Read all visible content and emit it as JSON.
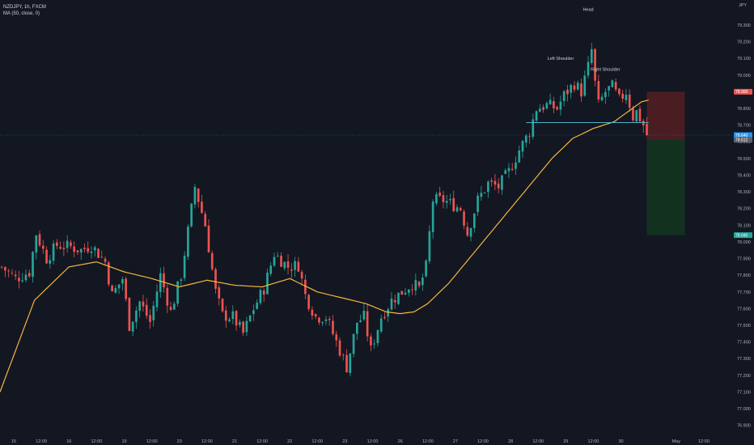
{
  "header": {
    "symbol_line": "NZDJPY, 1h, FXCM",
    "indicator_line": "MA (50, close, 0)"
  },
  "axis_unit": "JPY",
  "chart_data": {
    "type": "candlestick",
    "symbol": "NZDJPY",
    "interval": "1h",
    "source": "FXCM",
    "ylim": [
      76.85,
      79.45
    ],
    "y_ticks": [
      "79.300",
      "79.200",
      "79.100",
      "79.000",
      "78.900",
      "78.800",
      "78.700",
      "78.600",
      "78.500",
      "78.400",
      "78.300",
      "78.200",
      "78.100",
      "78.000",
      "77.900",
      "77.800",
      "77.700",
      "77.600",
      "77.500",
      "77.400",
      "77.300",
      "77.200",
      "77.100",
      "77.000",
      "76.900"
    ],
    "x_ticks": [
      {
        "label": "15",
        "pos": 4
      },
      {
        "label": "12:00",
        "pos": 12
      },
      {
        "label": "16",
        "pos": 20
      },
      {
        "label": "12:00",
        "pos": 28
      },
      {
        "label": "19",
        "pos": 36
      },
      {
        "label": "12:00",
        "pos": 44
      },
      {
        "label": "20",
        "pos": 52
      },
      {
        "label": "12:00",
        "pos": 60
      },
      {
        "label": "21",
        "pos": 68
      },
      {
        "label": "12:00",
        "pos": 76
      },
      {
        "label": "22",
        "pos": 84
      },
      {
        "label": "12:00",
        "pos": 92
      },
      {
        "label": "23",
        "pos": 100
      },
      {
        "label": "12:00",
        "pos": 108
      },
      {
        "label": "26",
        "pos": 116
      },
      {
        "label": "12:00",
        "pos": 124
      },
      {
        "label": "27",
        "pos": 132
      },
      {
        "label": "12:00",
        "pos": 140
      },
      {
        "label": "28",
        "pos": 148
      },
      {
        "label": "12:00",
        "pos": 156
      },
      {
        "label": "29",
        "pos": 164
      },
      {
        "label": "12:00",
        "pos": 172
      },
      {
        "label": "30",
        "pos": 180
      },
      {
        "label": "May",
        "pos": 196
      },
      {
        "label": "12:00",
        "pos": 204
      }
    ],
    "x_range": [
      0,
      212
    ],
    "candle_count": 188,
    "close_keys": [
      [
        0,
        77.85
      ],
      [
        4,
        77.78
      ],
      [
        8,
        77.82
      ],
      [
        10,
        78.05
      ],
      [
        13,
        77.9
      ],
      [
        16,
        77.98
      ],
      [
        20,
        77.97
      ],
      [
        23,
        77.95
      ],
      [
        26,
        77.98
      ],
      [
        30,
        77.88
      ],
      [
        32,
        77.68
      ],
      [
        35,
        77.78
      ],
      [
        37,
        77.5
      ],
      [
        40,
        77.64
      ],
      [
        43,
        77.52
      ],
      [
        46,
        77.8
      ],
      [
        49,
        77.58
      ],
      [
        52,
        77.8
      ],
      [
        56,
        78.33
      ],
      [
        59,
        78.1
      ],
      [
        62,
        77.7
      ],
      [
        64,
        77.56
      ],
      [
        67,
        77.55
      ],
      [
        70,
        77.45
      ],
      [
        73,
        77.6
      ],
      [
        76,
        77.72
      ],
      [
        79,
        77.93
      ],
      [
        83,
        77.85
      ],
      [
        86,
        77.86
      ],
      [
        88,
        77.68
      ],
      [
        91,
        77.55
      ],
      [
        94,
        77.55
      ],
      [
        97,
        77.4
      ],
      [
        100,
        77.25
      ],
      [
        103,
        77.52
      ],
      [
        105,
        77.55
      ],
      [
        107,
        77.35
      ],
      [
        110,
        77.55
      ],
      [
        113,
        77.65
      ],
      [
        116,
        77.7
      ],
      [
        119,
        77.75
      ],
      [
        121,
        77.72
      ],
      [
        123,
        77.85
      ],
      [
        125,
        78.25
      ],
      [
        128,
        78.25
      ],
      [
        131,
        78.22
      ],
      [
        133,
        78.2
      ],
      [
        135,
        78.05
      ],
      [
        138,
        78.25
      ],
      [
        141,
        78.35
      ],
      [
        144,
        78.33
      ],
      [
        147,
        78.42
      ],
      [
        150,
        78.55
      ],
      [
        153,
        78.66
      ],
      [
        155,
        78.8
      ],
      [
        158,
        78.82
      ],
      [
        161,
        78.8
      ],
      [
        163,
        78.88
      ],
      [
        166,
        78.95
      ],
      [
        168,
        78.9
      ],
      [
        170,
        79.05
      ],
      [
        171,
        79.15
      ],
      [
        172,
        78.95
      ],
      [
        173,
        78.82
      ],
      [
        175,
        78.9
      ],
      [
        177,
        78.93
      ],
      [
        179,
        78.85
      ],
      [
        181,
        78.9
      ],
      [
        183,
        78.75
      ],
      [
        184,
        78.78
      ],
      [
        186,
        78.7
      ],
      [
        187,
        78.64
      ]
    ],
    "ma_keys": [
      [
        0,
        77.1
      ],
      [
        10,
        77.65
      ],
      [
        20,
        77.85
      ],
      [
        28,
        77.88
      ],
      [
        36,
        77.82
      ],
      [
        44,
        77.78
      ],
      [
        52,
        77.73
      ],
      [
        60,
        77.77
      ],
      [
        68,
        77.74
      ],
      [
        76,
        77.73
      ],
      [
        84,
        77.78
      ],
      [
        92,
        77.7
      ],
      [
        100,
        77.66
      ],
      [
        106,
        77.63
      ],
      [
        112,
        77.58
      ],
      [
        116,
        77.57
      ],
      [
        120,
        77.58
      ],
      [
        124,
        77.63
      ],
      [
        130,
        77.75
      ],
      [
        136,
        77.9
      ],
      [
        142,
        78.05
      ],
      [
        148,
        78.2
      ],
      [
        154,
        78.35
      ],
      [
        160,
        78.5
      ],
      [
        166,
        78.62
      ],
      [
        172,
        78.68
      ],
      [
        178,
        78.72
      ],
      [
        182,
        78.78
      ],
      [
        186,
        78.84
      ],
      [
        188,
        78.85
      ]
    ],
    "ma_label": "MA (50, close, 0)",
    "neckline": {
      "x1": 152.5,
      "x2": 188,
      "y": 78.715
    },
    "annotations": [
      {
        "text": "Head",
        "x": 170.5,
        "y": 79.385
      },
      {
        "text": "Left Shoulder",
        "x": 162.5,
        "y": 79.09
      },
      {
        "text": "Right Shoulder",
        "x": 175.5,
        "y": 79.025
      }
    ],
    "position": {
      "x1": 187.5,
      "x2": 198.5,
      "stop": 78.9,
      "entry": 78.612,
      "target": 78.04
    },
    "price_tags": [
      {
        "price": 78.9,
        "label": "78.900",
        "color": "#ef5350"
      },
      {
        "price": 78.64,
        "label": "78.640",
        "color": "#2196f3"
      },
      {
        "price": 78.612,
        "label": "78.612",
        "color": "#5d606b"
      },
      {
        "price": 78.04,
        "label": "78.040",
        "color": "#26a69a"
      }
    ],
    "current_price_line": 78.64,
    "colors": {
      "background": "#131722",
      "up": "#26a69a",
      "down": "#ef5350",
      "ma": "#f6b73c",
      "neckline": "#4fb3c8",
      "stop_zone": "#4a1d22",
      "target_zone": "#12321f",
      "text": "#b2b5be"
    },
    "grid": false
  }
}
